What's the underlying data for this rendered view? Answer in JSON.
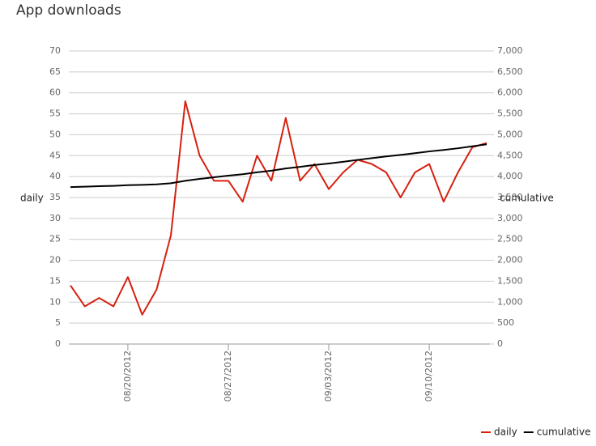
{
  "chart_data": {
    "type": "line",
    "title": "App downloads",
    "ylabel": "daily",
    "y2label": "cumulative",
    "categories": [
      null,
      null,
      null,
      null,
      "08/20/2012",
      null,
      null,
      null,
      null,
      null,
      null,
      "08/27/2012",
      null,
      null,
      null,
      null,
      null,
      null,
      "09/03/2012",
      null,
      null,
      null,
      null,
      null,
      null,
      "09/10/2012",
      null,
      null,
      null,
      null
    ],
    "series": [
      {
        "name": "daily",
        "color": "#d62010",
        "axis": "y",
        "values": [
          14,
          9,
          11,
          9,
          16,
          7,
          13,
          26,
          58,
          45,
          39,
          39,
          34,
          45,
          39,
          54,
          39,
          43,
          37,
          41,
          44,
          43,
          41,
          35,
          41,
          43,
          34,
          41,
          47,
          48
        ]
      },
      {
        "name": "cumulative",
        "color": "#000000",
        "axis": "y2",
        "values": [
          3750,
          3759,
          3770,
          3779,
          3795,
          3802,
          3815,
          3841,
          3899,
          3944,
          3983,
          4022,
          4056,
          4101,
          4140,
          4194,
          4233,
          4276,
          4313,
          4354,
          4398,
          4441,
          4482,
          4517,
          4558,
          4601,
          4635,
          4676,
          4723,
          4771
        ]
      }
    ],
    "ylim": [
      0,
      70
    ],
    "yticks": [
      0,
      5,
      10,
      15,
      20,
      25,
      30,
      35,
      40,
      45,
      50,
      55,
      60,
      65,
      70
    ],
    "y2lim": [
      0,
      7000
    ],
    "y2ticks": [
      0,
      500,
      {
        "value": 1000,
        "label": "1,000"
      },
      {
        "value": 1500,
        "label": "1,500"
      },
      {
        "value": 2000,
        "label": "2,000"
      },
      {
        "value": 2500,
        "label": "2,500"
      },
      {
        "value": 3000,
        "label": "3,000"
      },
      {
        "value": 3500,
        "label": "3,500"
      },
      {
        "value": 4000,
        "label": "4,000"
      },
      {
        "value": 4500,
        "label": "4,500"
      },
      {
        "value": 5000,
        "label": "5,000"
      },
      {
        "value": 5500,
        "label": "5,500"
      },
      {
        "value": 6000,
        "label": "6,000"
      },
      {
        "value": 6500,
        "label": "6,500"
      },
      {
        "value": 7000,
        "label": "7,000"
      }
    ],
    "grid": true,
    "legend": "bottom-right"
  }
}
